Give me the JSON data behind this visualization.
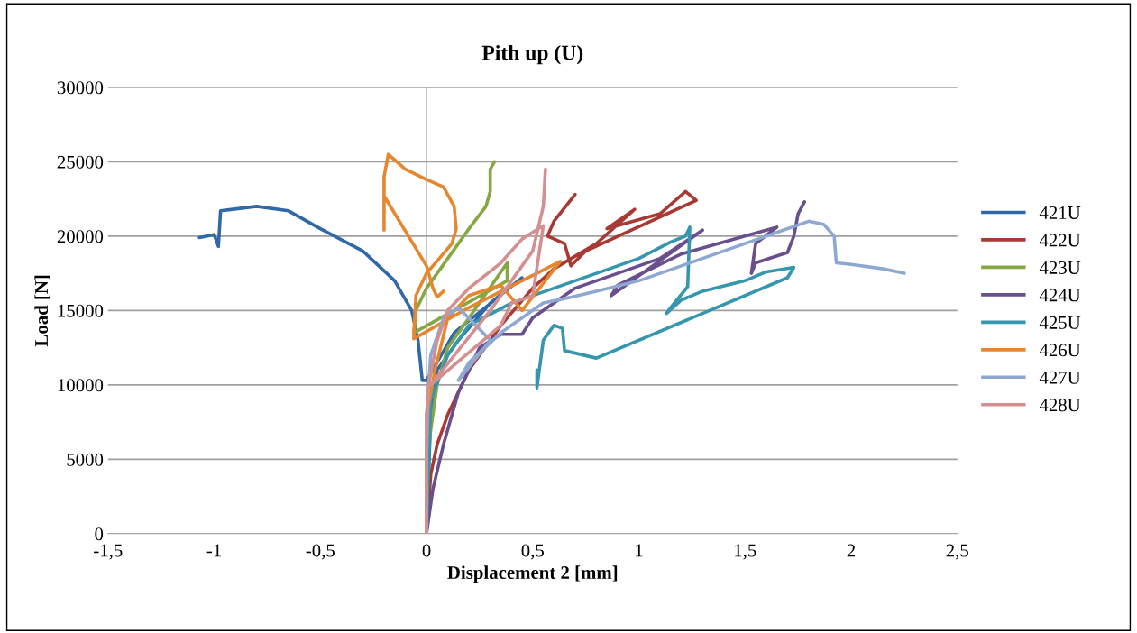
{
  "chart_data": {
    "type": "line",
    "title": "Pith up (U)",
    "xlabel": "Displacement 2 [mm]",
    "ylabel": "Load [N]",
    "xlim": [
      -1.5,
      2.5
    ],
    "xticks": [
      {
        "value": -1.5,
        "label": "-1,5"
      },
      -1,
      {
        "value": -0.5,
        "label": "-0,5"
      },
      0,
      {
        "value": 0.5,
        "label": "0,5"
      },
      1,
      {
        "value": 1.5,
        "label": "1,5"
      },
      2,
      {
        "value": 2.5,
        "label": "2,5"
      }
    ],
    "ylim": [
      0,
      30000
    ],
    "yticks": [
      0,
      5000,
      10000,
      15000,
      20000,
      25000,
      30000
    ],
    "grid": "y",
    "legend": "right",
    "marker": "none",
    "line_style": "solid",
    "series": [
      {
        "name": "421U",
        "color": "#3068a8",
        "x": [
          0,
          0.02,
          0.05,
          0.15,
          0.3,
          0.45,
          0.13,
          0.0,
          -0.02,
          -0.04,
          -0.07,
          -0.15,
          -0.3,
          -0.5,
          -0.65,
          -0.8,
          -0.97,
          -0.98,
          -1.0,
          -1.07
        ],
        "values": [
          0,
          8000,
          11000,
          13000,
          15500,
          17200,
          13500,
          10300,
          10300,
          13000,
          15000,
          17000,
          19000,
          20500,
          21700,
          22000,
          21700,
          19300,
          20100,
          19900
        ]
      },
      {
        "name": "422U",
        "color": "#a83a36",
        "x": [
          0,
          0.02,
          0.05,
          0.1,
          0.2,
          0.35,
          0.5,
          0.6,
          0.8,
          0.98,
          0.85,
          1.1,
          1.22,
          1.27,
          0.75,
          0.68,
          0.65,
          0.57,
          0.6,
          0.7
        ],
        "values": [
          0,
          4000,
          6000,
          8000,
          11000,
          14000,
          16500,
          17800,
          19500,
          21800,
          20500,
          21500,
          23000,
          22400,
          19000,
          18000,
          19500,
          20000,
          21000,
          22800
        ]
      },
      {
        "name": "423U",
        "color": "#86a844",
        "x": [
          0,
          0.0,
          0.05,
          0.1,
          0.2,
          0.38,
          0.38,
          -0.06,
          -0.05,
          0.0,
          0.1,
          0.2,
          0.28,
          0.3,
          0.3,
          0.32
        ],
        "values": [
          0,
          5000,
          10000,
          12500,
          14500,
          18200,
          17000,
          13500,
          15000,
          16500,
          18500,
          20500,
          22000,
          23000,
          24500,
          25000
        ]
      },
      {
        "name": "424U",
        "color": "#6a4f8f",
        "x": [
          0,
          0.03,
          0.08,
          0.15,
          0.25,
          0.35,
          0.45,
          0.5,
          0.7,
          0.9,
          1.1,
          1.3,
          0.87,
          0.9,
          1.2,
          1.5,
          1.65,
          1.55,
          1.53,
          1.55,
          1.7,
          1.73,
          1.75,
          1.78
        ],
        "values": [
          0,
          3000,
          6000,
          9500,
          12500,
          13400,
          13400,
          14500,
          16500,
          17500,
          18500,
          20400,
          16000,
          16700,
          18800,
          20000,
          20600,
          19500,
          17500,
          18200,
          18900,
          20000,
          21500,
          22300
        ]
      },
      {
        "name": "425U",
        "color": "#3596ad",
        "x": [
          0,
          0.02,
          0.1,
          0.2,
          0.4,
          0.6,
          0.8,
          1.0,
          1.15,
          1.22,
          1.24,
          1.23,
          1.15,
          1.13,
          1.2,
          1.3,
          1.5,
          1.6,
          1.73,
          1.7,
          0.8,
          0.65,
          0.64,
          0.6,
          0.55,
          0.52,
          0.52
        ],
        "values": [
          0,
          9000,
          12000,
          14000,
          15500,
          16500,
          17500,
          18500,
          19600,
          20000,
          20600,
          16600,
          15200,
          14800,
          15700,
          16300,
          17000,
          17600,
          17900,
          17200,
          11800,
          12300,
          13800,
          14000,
          13000,
          9800,
          11000
        ]
      },
      {
        "name": "426U",
        "color": "#e6862e",
        "x": [
          0,
          0.0,
          0.04,
          0.1,
          0.2,
          0.35,
          0.45,
          0.63,
          0.2,
          -0.06,
          -0.05,
          0.0,
          0.06,
          0.12,
          0.14,
          0.13,
          0.08,
          0.0,
          -0.1,
          -0.18,
          -0.2,
          -0.2,
          -0.2,
          0.0,
          0.03,
          0.05,
          0.08
        ],
        "values": [
          0,
          8000,
          11000,
          14500,
          16000,
          16700,
          15000,
          18300,
          15200,
          13100,
          16000,
          17500,
          18500,
          19500,
          20500,
          22000,
          23300,
          23800,
          24500,
          25500,
          24000,
          20400,
          22700,
          18000,
          16500,
          15900,
          16300
        ]
      },
      {
        "name": "427U",
        "color": "#8fa8d2",
        "x": [
          0,
          0.0,
          0.02,
          0.08,
          0.15,
          0.3,
          0.15,
          0.2,
          0.35,
          0.5,
          0.55,
          0.65,
          0.8,
          1.0,
          1.2,
          1.4,
          1.6,
          1.8,
          1.87,
          1.92,
          1.93,
          2.0,
          2.15,
          2.25
        ],
        "values": [
          0,
          8000,
          12000,
          14500,
          15200,
          13000,
          10300,
          11500,
          13500,
          15000,
          15500,
          15800,
          16300,
          17000,
          18000,
          19000,
          20000,
          21000,
          20800,
          20000,
          18200,
          18100,
          17800,
          17500
        ]
      },
      {
        "name": "428U",
        "color": "#d49090",
        "x": [
          0,
          0.0,
          0.01,
          0.05,
          0.1,
          0.2,
          0.35,
          0.45,
          0.55,
          0.5,
          0.4,
          0.35,
          0.02,
          0.3,
          0.5,
          0.55,
          0.56
        ],
        "values": [
          0,
          5000,
          10000,
          13000,
          15000,
          16500,
          18200,
          19800,
          20700,
          16000,
          15500,
          14000,
          10000,
          15000,
          19000,
          22000,
          24500
        ]
      }
    ]
  }
}
